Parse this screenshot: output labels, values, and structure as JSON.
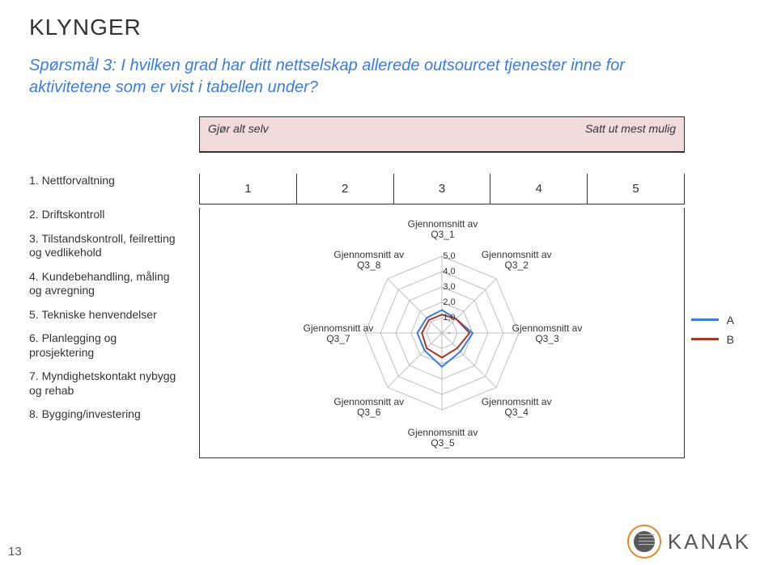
{
  "title": "KLYNGER",
  "question": "Spørsmål 3: I hvilken grad har ditt nettselskap allerede outsourcet tjenester inne for aktivitetene som er vist i tabellen under?",
  "scale_header": {
    "left": "Gjør alt selv",
    "right": "Satt ut mest mulig"
  },
  "scale_numbers": [
    "1",
    "2",
    "3",
    "4",
    "5"
  ],
  "side_items": [
    "1. Nettforvaltning",
    "2. Driftskontroll",
    "3. Tilstandskontroll, feilretting og vedlikehold",
    "4. Kundebehandling, måling og avregning",
    "5. Tekniske henvendelser",
    "6. Planlegging og prosjektering",
    "7. Myndighetskontakt nybygg og rehab",
    "8. Bygging/investering"
  ],
  "radar": {
    "type": "radar",
    "axes": 8,
    "max": 5,
    "rings": [
      1,
      2,
      3,
      4,
      5
    ],
    "tick_labels": [
      "-",
      "1,0",
      "2,0",
      "3,0",
      "4,0",
      "5,0"
    ],
    "axis_labels": [
      "Gjennomsnitt av Q3_1",
      "Gjennomsnitt av Q3_2",
      "Gjennomsnitt av Q3_3",
      "Gjennomsnitt av Q3_4",
      "Gjennomsnitt av Q3_5",
      "Gjennomsnitt av Q3_6",
      "Gjennomsnitt av Q3_7",
      "Gjennomsnitt av Q3_8"
    ],
    "series": [
      {
        "name": "A",
        "color": "#3b7dd8",
        "line_width": 2,
        "values": [
          1.5,
          1.3,
          2.0,
          1.7,
          2.2,
          1.6,
          1.6,
          1.4
        ]
      },
      {
        "name": "B",
        "color": "#a43a2a",
        "line_width": 2,
        "values": [
          1.2,
          1.3,
          1.8,
          1.4,
          1.6,
          1.4,
          1.3,
          1.2
        ]
      }
    ],
    "grid_color": "#bfbfbf",
    "grid_width": 1,
    "background_color": "#ffffff",
    "label_fontsize": 12,
    "tick_fontsize": 11
  },
  "legend_labels": [
    "A",
    "B"
  ],
  "page_number": "13",
  "brand": "KANAK"
}
